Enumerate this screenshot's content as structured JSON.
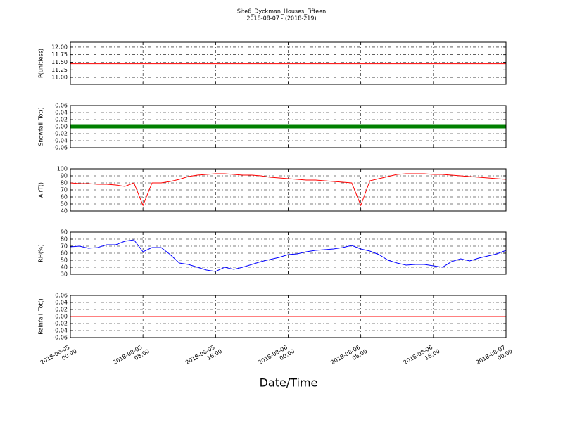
{
  "chart_data": [
    {
      "type": "line",
      "title": "Site6_Dyckman_Houses_Fifteen",
      "subtitle": "2018-08-07 - (2018-219)",
      "y_label": "P(unitless)",
      "ylim": [
        10.77,
        12.16
      ],
      "yticks": [
        {
          "value": 11,
          "label": "11.00"
        },
        {
          "value": 11.25,
          "label": "11.25"
        },
        {
          "value": 11.5,
          "label": "11.50"
        },
        {
          "value": 11.75,
          "label": "11.75"
        },
        {
          "value": 12,
          "label": "12.00"
        }
      ],
      "x": [
        "2018-08-05 00:00",
        "2018-08-07 00:00"
      ],
      "series": [
        {
          "color": "#ff0000",
          "values": [
            11.45,
            11.45
          ]
        }
      ],
      "grid": true
    },
    {
      "type": "line",
      "y_label": "Snowfall_Tot()",
      "ylim": [
        -0.06,
        0.06
      ],
      "yticks": [
        -0.06,
        -0.04,
        -0.02,
        {
          "value": 0,
          "label": "0.00"
        },
        0.02,
        0.04,
        0.06
      ],
      "x": [
        "2018-08-05 00:00",
        "2018-08-07 00:00"
      ],
      "series": [
        {
          "color": "#008000",
          "values": [
            0,
            0
          ],
          "markers": true
        }
      ],
      "grid": true
    },
    {
      "type": "line",
      "y_label": "AirT()",
      "ylim": [
        40,
        100
      ],
      "yticks": [
        40,
        50,
        60,
        70,
        80,
        90,
        100
      ],
      "x": [
        "2018-08-05 00:00",
        "2018-08-05 01:00",
        "2018-08-05 02:00",
        "2018-08-05 03:00",
        "2018-08-05 04:00",
        "2018-08-05 05:00",
        "2018-08-05 06:00",
        "2018-08-05 07:00",
        "2018-08-05 08:00",
        "2018-08-05 09:00",
        "2018-08-05 10:00",
        "2018-08-05 11:00",
        "2018-08-05 12:00",
        "2018-08-05 13:00",
        "2018-08-05 14:00",
        "2018-08-05 15:00",
        "2018-08-05 16:00",
        "2018-08-05 17:00",
        "2018-08-05 18:00",
        "2018-08-05 19:00",
        "2018-08-05 20:00",
        "2018-08-05 21:00",
        "2018-08-05 22:00",
        "2018-08-05 23:00",
        "2018-08-06 00:00",
        "2018-08-06 01:00",
        "2018-08-06 02:00",
        "2018-08-06 03:00",
        "2018-08-06 04:00",
        "2018-08-06 05:00",
        "2018-08-06 06:00",
        "2018-08-06 07:00",
        "2018-08-06 08:00",
        "2018-08-06 09:00",
        "2018-08-06 10:00",
        "2018-08-06 11:00",
        "2018-08-06 12:00",
        "2018-08-06 13:00",
        "2018-08-06 14:00",
        "2018-08-06 15:00",
        "2018-08-06 16:00",
        "2018-08-06 17:00",
        "2018-08-06 18:00",
        "2018-08-06 19:00",
        "2018-08-06 20:00",
        "2018-08-06 21:00",
        "2018-08-06 22:00",
        "2018-08-06 23:00",
        "2018-08-07 00:00"
      ],
      "series": [
        {
          "color": "#ff0000",
          "values": [
            80,
            79,
            79,
            78,
            78,
            77,
            75,
            80,
            48,
            80,
            80,
            82,
            85,
            89,
            91,
            92,
            93,
            93,
            92,
            91,
            91,
            90,
            88,
            87,
            86,
            85,
            84,
            84,
            83,
            82,
            81,
            80,
            48,
            83,
            86,
            89,
            92,
            93,
            93,
            93,
            92,
            92,
            91,
            90,
            89,
            88,
            87,
            86,
            85
          ]
        }
      ],
      "grid": true
    },
    {
      "type": "line",
      "y_label": "RH(%)",
      "ylim": [
        30,
        90
      ],
      "yticks": [
        30,
        40,
        50,
        60,
        70,
        80,
        90
      ],
      "x": [
        "2018-08-05 00:00",
        "2018-08-05 01:00",
        "2018-08-05 02:00",
        "2018-08-05 03:00",
        "2018-08-05 04:00",
        "2018-08-05 05:00",
        "2018-08-05 06:00",
        "2018-08-05 07:00",
        "2018-08-05 08:00",
        "2018-08-05 09:00",
        "2018-08-05 10:00",
        "2018-08-05 11:00",
        "2018-08-05 12:00",
        "2018-08-05 13:00",
        "2018-08-05 14:00",
        "2018-08-05 15:00",
        "2018-08-05 16:00",
        "2018-08-05 17:00",
        "2018-08-05 18:00",
        "2018-08-05 19:00",
        "2018-08-05 20:00",
        "2018-08-05 21:00",
        "2018-08-05 22:00",
        "2018-08-05 23:00",
        "2018-08-06 00:00",
        "2018-08-06 01:00",
        "2018-08-06 02:00",
        "2018-08-06 03:00",
        "2018-08-06 04:00",
        "2018-08-06 05:00",
        "2018-08-06 06:00",
        "2018-08-06 07:00",
        "2018-08-06 08:00",
        "2018-08-06 09:00",
        "2018-08-06 10:00",
        "2018-08-06 11:00",
        "2018-08-06 12:00",
        "2018-08-06 13:00",
        "2018-08-06 14:00",
        "2018-08-06 15:00",
        "2018-08-06 16:00",
        "2018-08-06 17:00",
        "2018-08-06 18:00",
        "2018-08-06 19:00",
        "2018-08-06 20:00",
        "2018-08-06 21:00",
        "2018-08-06 22:00",
        "2018-08-06 23:00",
        "2018-08-07 00:00"
      ],
      "series": [
        {
          "color": "#0000ff",
          "values": [
            69,
            70,
            67,
            68,
            72,
            72,
            77,
            79,
            62,
            68,
            68,
            58,
            46,
            44,
            40,
            36,
            34,
            40,
            37,
            40,
            44,
            48,
            51,
            54,
            58,
            59,
            62,
            64,
            65,
            66,
            68,
            71,
            66,
            63,
            58,
            50,
            46,
            43,
            44,
            44,
            42,
            40,
            48,
            52,
            49,
            53,
            56,
            59,
            64
          ]
        }
      ],
      "grid": true
    },
    {
      "type": "line",
      "y_label": "Rainfall_Tot()",
      "ylim": [
        -0.06,
        0.06
      ],
      "yticks": [
        -0.06,
        -0.04,
        -0.02,
        {
          "value": 0,
          "label": "0.00"
        },
        0.02,
        0.04,
        0.06
      ],
      "x": [
        "2018-08-05 00:00",
        "2018-08-07 00:00"
      ],
      "series": [
        {
          "color": "#ff0000",
          "values": [
            0,
            0
          ]
        }
      ],
      "grid": true,
      "xlim": [
        "2018-08-05 00:00",
        "2018-08-07 00:00"
      ],
      "xticks": [
        {
          "value": "2018-08-05 00:00",
          "label": [
            "2018-08-05",
            "00:00"
          ]
        },
        {
          "value": "2018-08-05 08:00",
          "label": [
            "2018-08-05",
            "08:00"
          ]
        },
        {
          "value": "2018-08-05 16:00",
          "label": [
            "2018-08-05",
            "16:00"
          ]
        },
        {
          "value": "2018-08-06 00:00",
          "label": [
            "2018-08-06",
            "00:00"
          ]
        },
        {
          "value": "2018-08-06 08:00",
          "label": [
            "2018-08-06",
            "08:00"
          ]
        },
        {
          "value": "2018-08-06 16:00",
          "label": [
            "2018-08-06",
            "16:00"
          ]
        },
        {
          "value": "2018-08-07 00:00",
          "label": [
            "2018-08-07",
            "00:00"
          ]
        }
      ],
      "x_label": "Date/Time"
    }
  ]
}
